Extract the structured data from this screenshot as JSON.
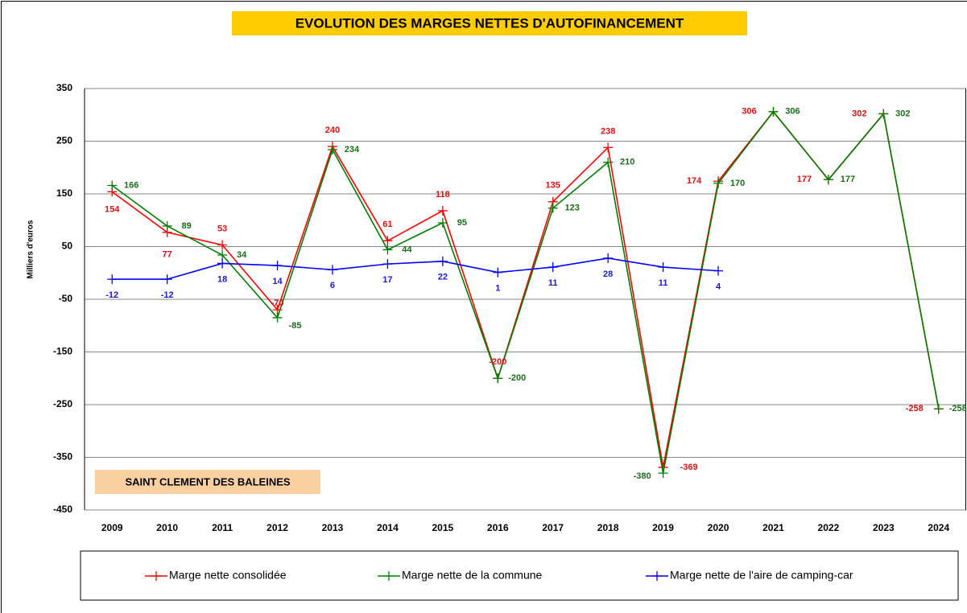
{
  "chart_data": {
    "type": "line",
    "title": "EVOLUTION DES MARGES NETTES D'AUTOFINANCEMENT",
    "subtitle": "SAINT CLEMENT DES BALEINES",
    "y_label": "Milliers d'euros",
    "categories": [
      "2009",
      "2010",
      "2011",
      "2012",
      "2013",
      "2014",
      "2015",
      "2016",
      "2017",
      "2018",
      "2019",
      "2020",
      "2021",
      "2022",
      "2023",
      "2024"
    ],
    "series": [
      {
        "name": "Marge nette consolidée",
        "color": "#ff0000",
        "label_color": "#e01010",
        "values": [
          154,
          77,
          53,
          -70,
          240,
          61,
          118,
          -200,
          135,
          238,
          -369,
          174,
          306,
          177,
          302,
          -258
        ]
      },
      {
        "name": "Marge nette de la commune",
        "color": "#008000",
        "label_color": "#1a6e1a",
        "values": [
          166,
          89,
          34,
          -85,
          234,
          44,
          95,
          -200,
          123,
          210,
          -380,
          170,
          306,
          177,
          302,
          -258
        ]
      },
      {
        "name": "Marge nette de l'aire de camping-car",
        "color": "#0000ff",
        "label_color": "#1a1acc",
        "values": [
          -12,
          -12,
          18,
          14,
          6,
          17,
          22,
          1,
          11,
          28,
          11,
          4,
          null,
          null,
          null,
          null
        ]
      }
    ],
    "ylim": [
      -450,
      350
    ],
    "yticks": [
      -450,
      -350,
      -250,
      -150,
      -50,
      50,
      150,
      250,
      350
    ],
    "grid": true,
    "legend": "bottom"
  }
}
